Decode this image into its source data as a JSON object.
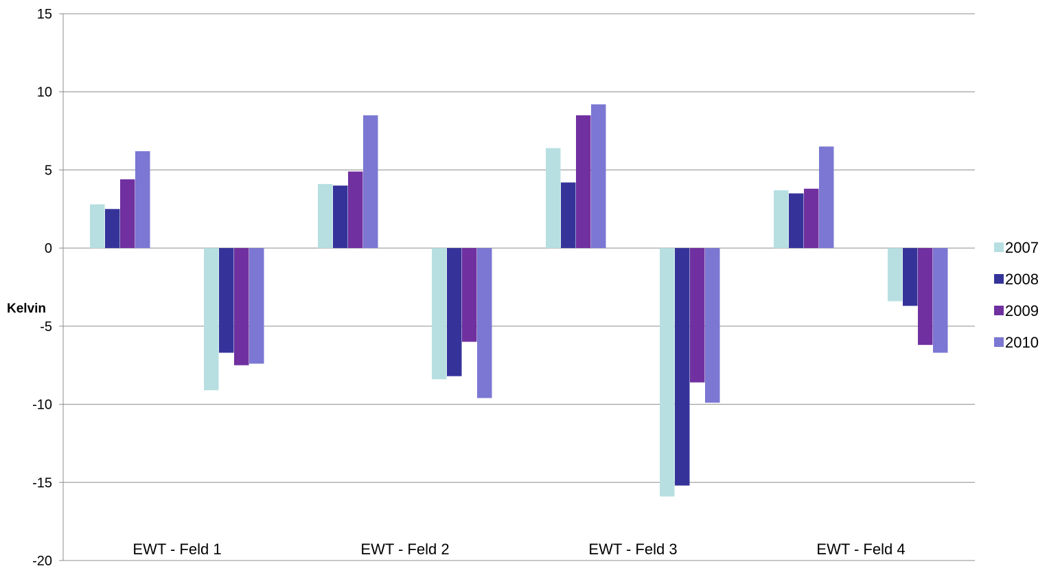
{
  "chart_data": {
    "type": "bar",
    "title": "",
    "xlabel": "",
    "ylabel": "Kelvin",
    "ylim": [
      -20,
      15
    ],
    "yticks": [
      15,
      10,
      5,
      0,
      -5,
      -10,
      -15,
      -20
    ],
    "grid": true,
    "legend_position": "right",
    "categories": [
      "EWT - Feld 1",
      "EWT - Feld 2",
      "EWT - Feld 3",
      "EWT - Feld 4"
    ],
    "groups_per_category": 2,
    "series": [
      {
        "name": "2007",
        "color": "#b7dfe2",
        "values": [
          [
            2.8,
            -9.1
          ],
          [
            4.1,
            -8.4
          ],
          [
            6.4,
            -15.9
          ],
          [
            3.7,
            -3.4
          ]
        ]
      },
      {
        "name": "2008",
        "color": "#35339a",
        "values": [
          [
            2.5,
            -6.7
          ],
          [
            4.0,
            -8.2
          ],
          [
            4.2,
            -15.2
          ],
          [
            3.5,
            -3.7
          ]
        ]
      },
      {
        "name": "2009",
        "color": "#7030a0",
        "values": [
          [
            4.4,
            -7.5
          ],
          [
            4.9,
            -6.0
          ],
          [
            8.5,
            -8.6
          ],
          [
            3.8,
            -6.2
          ]
        ]
      },
      {
        "name": "2010",
        "color": "#7b77d3",
        "values": [
          [
            6.2,
            -7.4
          ],
          [
            8.5,
            -9.6
          ],
          [
            9.2,
            -9.9
          ],
          [
            6.5,
            -6.7
          ]
        ]
      }
    ]
  }
}
